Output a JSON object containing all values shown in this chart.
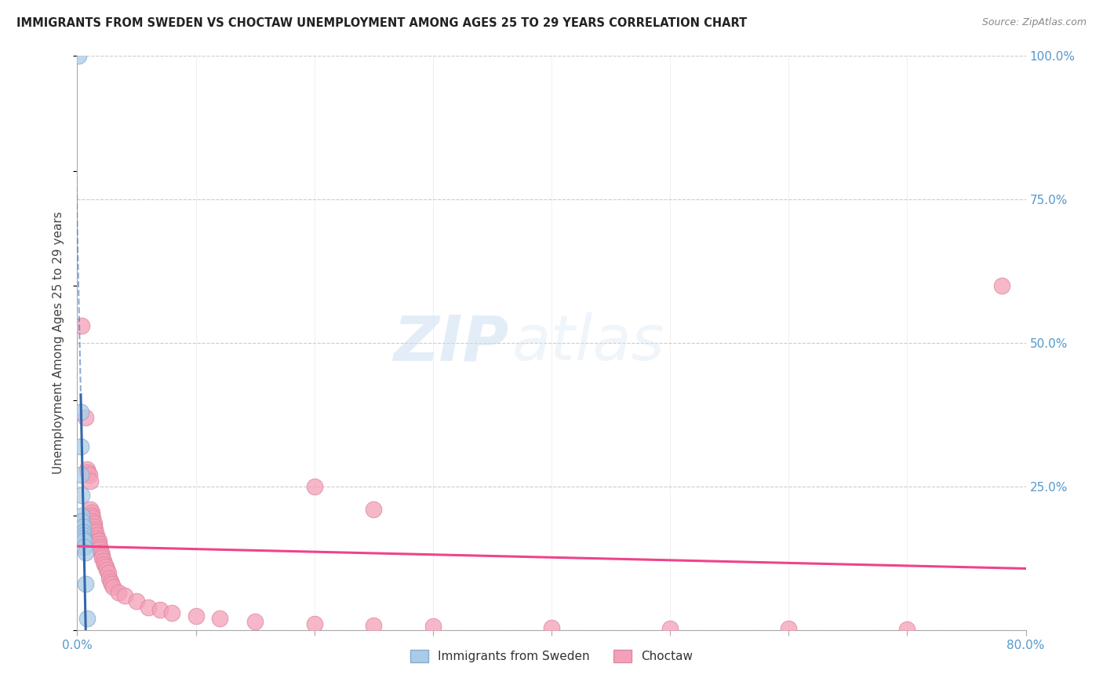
{
  "title": "IMMIGRANTS FROM SWEDEN VS CHOCTAW UNEMPLOYMENT AMONG AGES 25 TO 29 YEARS CORRELATION CHART",
  "source": "Source: ZipAtlas.com",
  "ylabel": "Unemployment Among Ages 25 to 29 years",
  "xlim": [
    0,
    0.8
  ],
  "ylim": [
    0,
    1.0
  ],
  "xticks": [
    0.0,
    0.1,
    0.2,
    0.3,
    0.4,
    0.5,
    0.6,
    0.7,
    0.8
  ],
  "yticks": [
    0.0,
    0.25,
    0.5,
    0.75,
    1.0
  ],
  "xtick_labels": [
    "0.0%",
    "",
    "",
    "",
    "",
    "",
    "",
    "",
    "80.0%"
  ],
  "ytick_labels_right": [
    "",
    "25.0%",
    "50.0%",
    "75.0%",
    "100.0%"
  ],
  "legend1_color": "#aacce8",
  "legend2_color": "#f4a0b8",
  "watermark_zip": "ZIP",
  "watermark_atlas": "atlas",
  "background_color": "#ffffff",
  "grid_color": "#cccccc",
  "sweden_color": "#aacce8",
  "choctaw_color": "#f4a0b8",
  "sweden_edge_color": "#88aacc",
  "choctaw_edge_color": "#dd88a0",
  "sweden_regression_color": "#3366aa",
  "choctaw_regression_color": "#ee4488",
  "sweden_points": [
    [
      0.001,
      1.0
    ],
    [
      0.003,
      0.38
    ],
    [
      0.003,
      0.32
    ],
    [
      0.003,
      0.27
    ],
    [
      0.004,
      0.235
    ],
    [
      0.004,
      0.2
    ],
    [
      0.004,
      0.19
    ],
    [
      0.005,
      0.18
    ],
    [
      0.005,
      0.17
    ],
    [
      0.005,
      0.165
    ],
    [
      0.005,
      0.16
    ],
    [
      0.006,
      0.155
    ],
    [
      0.006,
      0.145
    ],
    [
      0.007,
      0.135
    ],
    [
      0.007,
      0.08
    ],
    [
      0.008,
      0.02
    ]
  ],
  "choctaw_points": [
    [
      0.004,
      0.53
    ],
    [
      0.007,
      0.37
    ],
    [
      0.008,
      0.28
    ],
    [
      0.009,
      0.275
    ],
    [
      0.01,
      0.27
    ],
    [
      0.011,
      0.26
    ],
    [
      0.011,
      0.21
    ],
    [
      0.012,
      0.205
    ],
    [
      0.012,
      0.2
    ],
    [
      0.013,
      0.195
    ],
    [
      0.013,
      0.19
    ],
    [
      0.014,
      0.185
    ],
    [
      0.014,
      0.18
    ],
    [
      0.015,
      0.175
    ],
    [
      0.015,
      0.17
    ],
    [
      0.016,
      0.165
    ],
    [
      0.016,
      0.16
    ],
    [
      0.017,
      0.155
    ],
    [
      0.018,
      0.155
    ],
    [
      0.018,
      0.15
    ],
    [
      0.019,
      0.145
    ],
    [
      0.019,
      0.14
    ],
    [
      0.02,
      0.135
    ],
    [
      0.021,
      0.13
    ],
    [
      0.021,
      0.125
    ],
    [
      0.022,
      0.12
    ],
    [
      0.023,
      0.115
    ],
    [
      0.024,
      0.11
    ],
    [
      0.025,
      0.105
    ],
    [
      0.026,
      0.1
    ],
    [
      0.027,
      0.09
    ],
    [
      0.028,
      0.085
    ],
    [
      0.029,
      0.08
    ],
    [
      0.03,
      0.075
    ],
    [
      0.035,
      0.065
    ],
    [
      0.04,
      0.06
    ],
    [
      0.05,
      0.05
    ],
    [
      0.06,
      0.04
    ],
    [
      0.07,
      0.035
    ],
    [
      0.08,
      0.03
    ],
    [
      0.1,
      0.025
    ],
    [
      0.12,
      0.02
    ],
    [
      0.15,
      0.015
    ],
    [
      0.2,
      0.01
    ],
    [
      0.25,
      0.008
    ],
    [
      0.3,
      0.006
    ],
    [
      0.4,
      0.004
    ],
    [
      0.5,
      0.003
    ],
    [
      0.6,
      0.002
    ],
    [
      0.7,
      0.001
    ],
    [
      0.78,
      0.6
    ],
    [
      0.2,
      0.25
    ],
    [
      0.25,
      0.21
    ]
  ]
}
